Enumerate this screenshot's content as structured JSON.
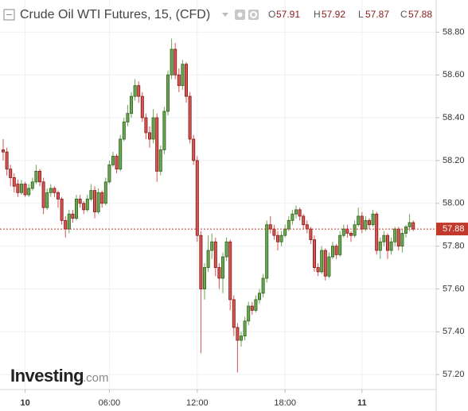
{
  "chart_data": {
    "type": "candlestick",
    "title": "Crude Oil WTI Futures, 15, (CFD)",
    "ohlc_letters": [
      "O",
      "H",
      "L",
      "C"
    ],
    "brand": {
      "name": "Investing",
      "suffix": ".com"
    },
    "up_color": "#6aa84f",
    "down_color": "#d9534f",
    "grid": true,
    "ylim": [
      57.13,
      58.95
    ],
    "yticks": [
      {
        "value": 58.8,
        "label": "58.80"
      },
      {
        "value": 58.6,
        "label": "58.60"
      },
      {
        "value": 58.4,
        "label": "58.40"
      },
      {
        "value": 58.2,
        "label": "58.20"
      },
      {
        "value": 58.0,
        "label": "58.00"
      },
      {
        "value": 57.8,
        "label": "57.80"
      },
      {
        "value": 57.6,
        "label": "57.60"
      },
      {
        "value": 57.4,
        "label": "57.40"
      },
      {
        "value": 57.2,
        "label": "57.20"
      }
    ],
    "categories": [
      null,
      null,
      null,
      null,
      null,
      null,
      "10",
      null,
      null,
      null,
      null,
      null,
      null,
      null,
      null,
      null,
      null,
      null,
      null,
      null,
      null,
      null,
      null,
      null,
      null,
      null,
      null,
      null,
      null,
      "06:00",
      null,
      null,
      null,
      null,
      null,
      null,
      null,
      null,
      null,
      null,
      null,
      null,
      null,
      null,
      null,
      null,
      null,
      null,
      null,
      null,
      null,
      null,
      null,
      "12:00",
      null,
      null,
      null,
      null,
      null,
      null,
      null,
      null,
      null,
      null,
      null,
      null,
      null,
      null,
      null,
      null,
      null,
      null,
      null,
      null,
      null,
      null,
      null,
      "18:00",
      null,
      null,
      null,
      null,
      null,
      null,
      null,
      null,
      null,
      null,
      null,
      null,
      null,
      null,
      null,
      null,
      null,
      null,
      null,
      null,
      "11",
      null,
      null,
      null,
      null,
      null,
      null,
      null,
      null,
      null,
      null,
      null,
      null,
      null,
      null
    ],
    "ohlc": [
      [
        58.25,
        58.3,
        58.2,
        58.24
      ],
      [
        58.24,
        58.26,
        58.13,
        58.16
      ],
      [
        58.16,
        58.18,
        58.08,
        58.12
      ],
      [
        58.12,
        58.14,
        58.05,
        58.08
      ],
      [
        58.09,
        58.11,
        58.03,
        58.05
      ],
      [
        58.05,
        58.11,
        58.04,
        58.09
      ],
      [
        58.09,
        58.1,
        58.03,
        58.04
      ],
      [
        58.04,
        58.09,
        58.03,
        58.07
      ],
      [
        58.07,
        58.12,
        58.06,
        58.1
      ],
      [
        58.1,
        58.18,
        58.09,
        58.15
      ],
      [
        58.15,
        58.16,
        58.08,
        58.1
      ],
      [
        58.1,
        58.12,
        57.95,
        57.98
      ],
      [
        57.98,
        58.07,
        57.97,
        58.05
      ],
      [
        58.05,
        58.09,
        58.03,
        58.07
      ],
      [
        58.07,
        58.08,
        58.03,
        58.05
      ],
      [
        58.05,
        58.06,
        57.98,
        58.02
      ],
      [
        58.02,
        58.03,
        57.9,
        57.92
      ],
      [
        57.92,
        57.94,
        57.84,
        57.88
      ],
      [
        57.88,
        57.97,
        57.86,
        57.95
      ],
      [
        57.95,
        57.97,
        57.91,
        57.93
      ],
      [
        57.93,
        58.04,
        57.92,
        58.02
      ],
      [
        58.02,
        58.04,
        57.98,
        58.0
      ],
      [
        58.0,
        58.01,
        57.95,
        57.97
      ],
      [
        57.97,
        58.04,
        57.96,
        58.02
      ],
      [
        58.02,
        58.09,
        58.01,
        58.06
      ],
      [
        58.06,
        58.08,
        57.93,
        57.96
      ],
      [
        57.96,
        58.07,
        57.95,
        58.05
      ],
      [
        58.05,
        58.06,
        57.98,
        58.0
      ],
      [
        58.0,
        58.12,
        57.99,
        58.1
      ],
      [
        58.1,
        58.2,
        58.09,
        58.18
      ],
      [
        58.18,
        58.24,
        58.17,
        58.22
      ],
      [
        58.22,
        58.23,
        58.14,
        58.16
      ],
      [
        58.16,
        58.32,
        58.15,
        58.3
      ],
      [
        58.3,
        58.4,
        58.29,
        58.38
      ],
      [
        58.38,
        58.46,
        58.36,
        58.42
      ],
      [
        58.42,
        58.52,
        58.4,
        58.5
      ],
      [
        58.5,
        58.58,
        58.48,
        58.55
      ],
      [
        58.55,
        58.57,
        58.47,
        58.5
      ],
      [
        58.5,
        58.52,
        58.38,
        58.4
      ],
      [
        58.4,
        58.42,
        58.3,
        58.33
      ],
      [
        58.33,
        58.36,
        58.26,
        58.3
      ],
      [
        58.3,
        58.44,
        58.28,
        58.4
      ],
      [
        58.4,
        58.42,
        58.1,
        58.15
      ],
      [
        58.15,
        58.27,
        58.13,
        58.25
      ],
      [
        58.25,
        58.45,
        58.23,
        58.43
      ],
      [
        58.43,
        58.62,
        58.41,
        58.6
      ],
      [
        58.6,
        58.77,
        58.58,
        58.72
      ],
      [
        58.72,
        58.75,
        58.58,
        58.6
      ],
      [
        58.6,
        58.63,
        58.52,
        58.55
      ],
      [
        58.55,
        58.67,
        58.53,
        58.65
      ],
      [
        58.65,
        58.66,
        58.47,
        58.5
      ],
      [
        58.5,
        58.52,
        58.28,
        58.3
      ],
      [
        58.3,
        58.32,
        58.18,
        58.2
      ],
      [
        58.2,
        58.22,
        57.82,
        57.85
      ],
      [
        57.85,
        57.87,
        57.3,
        57.6
      ],
      [
        57.6,
        57.72,
        57.55,
        57.7
      ],
      [
        57.7,
        57.85,
        57.68,
        57.78
      ],
      [
        57.78,
        57.86,
        57.74,
        57.82
      ],
      [
        57.82,
        57.84,
        57.66,
        57.7
      ],
      [
        57.7,
        57.72,
        57.6,
        57.65
      ],
      [
        57.65,
        57.77,
        57.58,
        57.75
      ],
      [
        57.75,
        57.84,
        57.73,
        57.82
      ],
      [
        57.82,
        57.83,
        57.5,
        57.55
      ],
      [
        57.55,
        57.57,
        57.38,
        57.42
      ],
      [
        57.42,
        57.44,
        57.21,
        57.36
      ],
      [
        57.36,
        57.4,
        57.33,
        57.38
      ],
      [
        57.38,
        57.47,
        57.36,
        57.45
      ],
      [
        57.45,
        57.54,
        57.43,
        57.52
      ],
      [
        57.52,
        57.54,
        57.48,
        57.5
      ],
      [
        57.5,
        57.57,
        57.49,
        57.55
      ],
      [
        57.55,
        57.6,
        57.53,
        57.58
      ],
      [
        57.58,
        57.67,
        57.56,
        57.65
      ],
      [
        57.65,
        57.92,
        57.63,
        57.9
      ],
      [
        57.9,
        57.94,
        57.86,
        57.88
      ],
      [
        57.88,
        57.9,
        57.83,
        57.85
      ],
      [
        57.85,
        57.87,
        57.78,
        57.82
      ],
      [
        57.82,
        57.87,
        57.8,
        57.85
      ],
      [
        57.85,
        57.9,
        57.84,
        57.88
      ],
      [
        57.88,
        57.94,
        57.87,
        57.92
      ],
      [
        57.92,
        57.97,
        57.9,
        57.95
      ],
      [
        57.95,
        57.99,
        57.93,
        57.97
      ],
      [
        57.97,
        57.98,
        57.92,
        57.94
      ],
      [
        57.94,
        57.95,
        57.88,
        57.9
      ],
      [
        57.9,
        57.92,
        57.86,
        57.88
      ],
      [
        57.88,
        57.89,
        57.81,
        57.83
      ],
      [
        57.83,
        57.85,
        57.68,
        57.7
      ],
      [
        57.7,
        57.72,
        57.66,
        57.68
      ],
      [
        57.68,
        57.8,
        57.67,
        57.78
      ],
      [
        57.78,
        57.79,
        57.64,
        57.66
      ],
      [
        57.66,
        57.77,
        57.65,
        57.75
      ],
      [
        57.75,
        57.82,
        57.74,
        57.8
      ],
      [
        57.8,
        57.81,
        57.74,
        57.76
      ],
      [
        57.76,
        57.87,
        57.75,
        57.85
      ],
      [
        57.85,
        57.9,
        57.84,
        57.88
      ],
      [
        57.88,
        57.9,
        57.84,
        57.86
      ],
      [
        57.86,
        57.87,
        57.82,
        57.85
      ],
      [
        57.85,
        57.92,
        57.84,
        57.9
      ],
      [
        57.9,
        57.98,
        57.89,
        57.94
      ],
      [
        57.94,
        57.96,
        57.86,
        57.88
      ],
      [
        57.88,
        57.94,
        57.87,
        57.92
      ],
      [
        57.92,
        57.93,
        57.88,
        57.9
      ],
      [
        57.9,
        57.97,
        57.89,
        57.95
      ],
      [
        57.95,
        57.96,
        57.76,
        57.78
      ],
      [
        57.78,
        57.84,
        57.74,
        57.82
      ],
      [
        57.82,
        57.87,
        57.8,
        57.85
      ],
      [
        57.85,
        57.86,
        57.74,
        57.78
      ],
      [
        57.78,
        57.84,
        57.76,
        57.82
      ],
      [
        57.82,
        57.89,
        57.8,
        57.88
      ],
      [
        57.88,
        57.89,
        57.78,
        57.8
      ],
      [
        57.8,
        57.88,
        57.77,
        57.86
      ],
      [
        57.86,
        57.9,
        57.84,
        57.89
      ],
      [
        57.89,
        57.95,
        57.87,
        57.91
      ],
      [
        57.91,
        57.92,
        57.87,
        57.88
      ]
    ]
  }
}
